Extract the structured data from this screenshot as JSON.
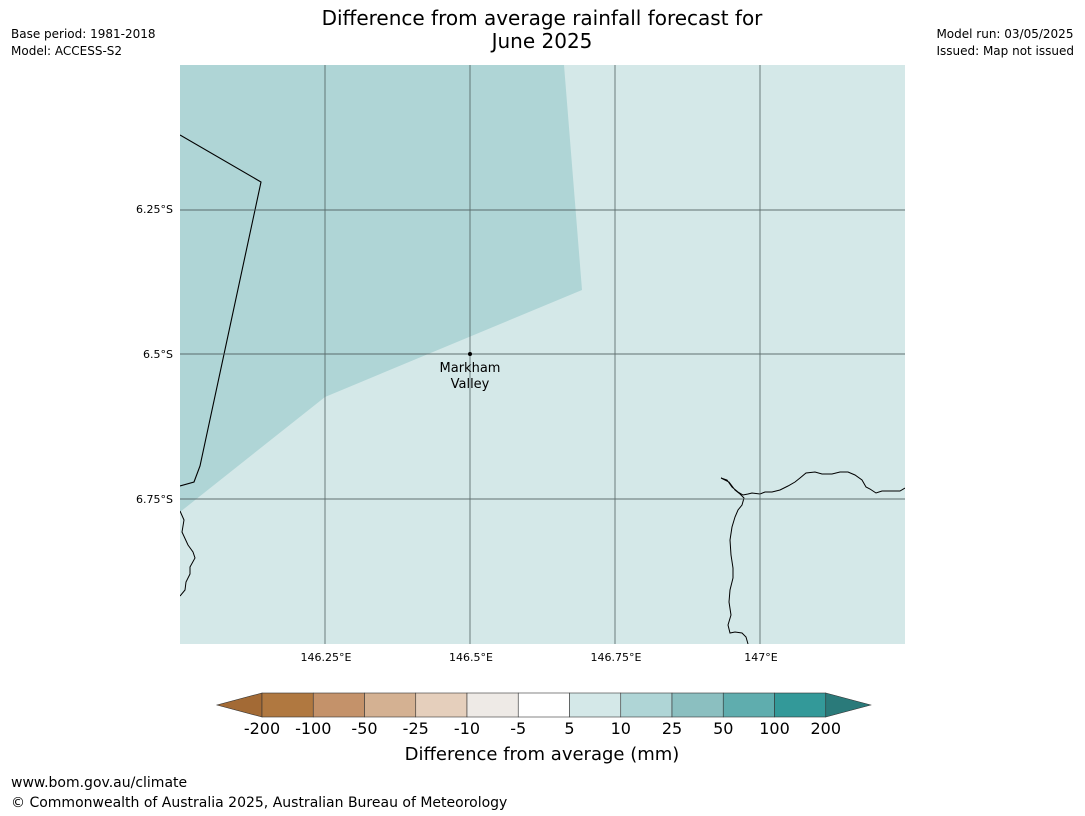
{
  "header": {
    "title_line1": "Difference from average rainfall forecast for",
    "title_line2": "June 2025",
    "base_period": "Base period: 1981-2018",
    "model": "Model: ACCESS-S2",
    "model_run": "Model run: 03/05/2025",
    "issued": "Issued: Map not issued"
  },
  "map": {
    "location_label_line1": "Markham",
    "location_label_line2": "Valley",
    "lon_ticks": [
      "146.25°E",
      "146.5°E",
      "146.75°E",
      "147°E"
    ],
    "lat_ticks": [
      "6.25°S",
      "6.5°S",
      "6.75°S"
    ],
    "region_colors": {
      "category_10_25": "#afd5d6",
      "category_5_10": "#d4e8e8"
    }
  },
  "colorbar": {
    "ticks": [
      "-200",
      "-100",
      "-50",
      "-25",
      "-10",
      "-5",
      "5",
      "10",
      "25",
      "50",
      "100",
      "200"
    ],
    "colors": [
      "#a36a35",
      "#b07840",
      "#c4926a",
      "#d4b192",
      "#e5cfbc",
      "#eeeae6",
      "#ffffff",
      "#d4e8e8",
      "#afd5d6",
      "#8bbfc0",
      "#5fadae",
      "#339999",
      "#2a7a7a"
    ],
    "title": "Difference from average (mm)"
  },
  "footer": {
    "url": "www.bom.gov.au/climate",
    "copyright": "© Commonwealth of Australia 2025, Australian Bureau of Meteorology"
  }
}
